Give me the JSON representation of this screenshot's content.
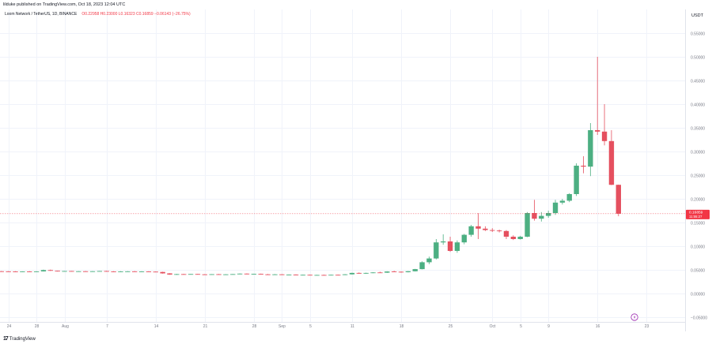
{
  "header": {
    "published": "lilduke published on TradingView.com, Oct 18, 2023 12:04 UTC",
    "symbol": "Loom Network / TetherUS, 1D, BINANCE",
    "ohlc": "O0.22958  H0.23000  L0.16323  C0.16859  −0.06143 (−26.75%)"
  },
  "footer": {
    "brand": "TradingView"
  },
  "colors": {
    "up": "#4caf82",
    "down": "#e5505f",
    "grid": "#f0f3fa",
    "axis": "#787b86",
    "price_label": "#f23645"
  },
  "chart_data": {
    "type": "candlestick",
    "title": "",
    "y_unit": "USDT",
    "ylim": [
      -0.06,
      0.6
    ],
    "y_ticks": [
      -0.05,
      0,
      0.05,
      0.1,
      0.15,
      0.2,
      0.25,
      0.3,
      0.35,
      0.4,
      0.45,
      0.5,
      0.55
    ],
    "y_tick_labels": [
      "−0.05000",
      "0.00000",
      "0.05000",
      "0.10000",
      "0.15000",
      "0.20000",
      "0.25000",
      "0.30000",
      "0.35000",
      "0.40000",
      "0.45000",
      "0.50000",
      "0.55000"
    ],
    "x_tick_labels": [
      {
        "label": "24",
        "day": 0
      },
      {
        "label": "28",
        "day": 4
      },
      {
        "label": "Aug",
        "day": 8
      },
      {
        "label": "7",
        "day": 14
      },
      {
        "label": "14",
        "day": 21
      },
      {
        "label": "21",
        "day": 28
      },
      {
        "label": "28",
        "day": 35
      },
      {
        "label": "Sep",
        "day": 39
      },
      {
        "label": "5",
        "day": 43
      },
      {
        "label": "11",
        "day": 49
      },
      {
        "label": "18",
        "day": 56
      },
      {
        "label": "25",
        "day": 63
      },
      {
        "label": "Oct",
        "day": 69
      },
      {
        "label": "5",
        "day": 73
      },
      {
        "label": "9",
        "day": 77
      },
      {
        "label": "16",
        "day": 84
      },
      {
        "label": "23",
        "day": 91
      }
    ],
    "x_day_range": [
      -1.2,
      96.5
    ],
    "last_price": {
      "value": 0.16859,
      "label": "0.16859",
      "countdown": "11:55:27"
    },
    "candles": [
      [
        -1,
        0.047,
        0.0475,
        0.0465,
        0.0468
      ],
      [
        0,
        0.0468,
        0.0472,
        0.0462,
        0.0465
      ],
      [
        1,
        0.0465,
        0.047,
        0.0458,
        0.046
      ],
      [
        2,
        0.046,
        0.0468,
        0.0455,
        0.0466
      ],
      [
        3,
        0.0466,
        0.0472,
        0.046,
        0.0462
      ],
      [
        4,
        0.0462,
        0.047,
        0.0458,
        0.0467
      ],
      [
        5,
        0.0467,
        0.0505,
        0.0465,
        0.0495
      ],
      [
        6,
        0.0495,
        0.0505,
        0.0478,
        0.048
      ],
      [
        7,
        0.048,
        0.0482,
        0.0465,
        0.047
      ],
      [
        8,
        0.047,
        0.0478,
        0.0465,
        0.0475
      ],
      [
        9,
        0.0475,
        0.0478,
        0.0465,
        0.0468
      ],
      [
        10,
        0.0468,
        0.0472,
        0.046,
        0.047
      ],
      [
        11,
        0.047,
        0.0474,
        0.0462,
        0.0465
      ],
      [
        12,
        0.0465,
        0.0472,
        0.046,
        0.047
      ],
      [
        13,
        0.047,
        0.0478,
        0.0465,
        0.0475
      ],
      [
        14,
        0.0475,
        0.048,
        0.0462,
        0.0465
      ],
      [
        15,
        0.0465,
        0.047,
        0.0455,
        0.046
      ],
      [
        16,
        0.046,
        0.047,
        0.0455,
        0.0465
      ],
      [
        17,
        0.0465,
        0.0472,
        0.046,
        0.0468
      ],
      [
        18,
        0.0468,
        0.0474,
        0.0462,
        0.0464
      ],
      [
        19,
        0.0464,
        0.047,
        0.0458,
        0.0466
      ],
      [
        20,
        0.0466,
        0.047,
        0.0458,
        0.0462
      ],
      [
        21,
        0.0462,
        0.0466,
        0.0452,
        0.0455
      ],
      [
        22,
        0.0455,
        0.046,
        0.042,
        0.0425
      ],
      [
        23,
        0.0425,
        0.043,
        0.0395,
        0.04
      ],
      [
        24,
        0.04,
        0.0415,
        0.0395,
        0.041
      ],
      [
        25,
        0.041,
        0.0415,
        0.04,
        0.0405
      ],
      [
        26,
        0.0405,
        0.0415,
        0.04,
        0.0412
      ],
      [
        27,
        0.0412,
        0.0416,
        0.04,
        0.0405
      ],
      [
        28,
        0.0405,
        0.041,
        0.0398,
        0.0402
      ],
      [
        29,
        0.0402,
        0.041,
        0.0398,
        0.0408
      ],
      [
        30,
        0.0408,
        0.0412,
        0.0398,
        0.04
      ],
      [
        31,
        0.04,
        0.0408,
        0.0395,
        0.0405
      ],
      [
        32,
        0.0405,
        0.0412,
        0.04,
        0.041
      ],
      [
        33,
        0.041,
        0.0425,
        0.0405,
        0.042
      ],
      [
        34,
        0.042,
        0.0425,
        0.0405,
        0.041
      ],
      [
        35,
        0.041,
        0.0418,
        0.0405,
        0.0415
      ],
      [
        36,
        0.0415,
        0.042,
        0.0402,
        0.0405
      ],
      [
        37,
        0.0405,
        0.0412,
        0.0398,
        0.04
      ],
      [
        38,
        0.04,
        0.041,
        0.0395,
        0.0405
      ],
      [
        39,
        0.0405,
        0.041,
        0.0392,
        0.0395
      ],
      [
        40,
        0.0395,
        0.0402,
        0.039,
        0.0398
      ],
      [
        41,
        0.0398,
        0.0405,
        0.039,
        0.0393
      ],
      [
        42,
        0.0393,
        0.04,
        0.0385,
        0.0395
      ],
      [
        43,
        0.0395,
        0.04,
        0.0385,
        0.0388
      ],
      [
        44,
        0.0388,
        0.0395,
        0.0382,
        0.0392
      ],
      [
        45,
        0.0392,
        0.0398,
        0.0385,
        0.039
      ],
      [
        46,
        0.039,
        0.0398,
        0.0385,
        0.0395
      ],
      [
        47,
        0.0395,
        0.04,
        0.0388,
        0.0392
      ],
      [
        48,
        0.0392,
        0.041,
        0.0388,
        0.0405
      ],
      [
        49,
        0.0405,
        0.044,
        0.04,
        0.0435
      ],
      [
        50,
        0.0435,
        0.0445,
        0.0415,
        0.042
      ],
      [
        51,
        0.042,
        0.044,
        0.0415,
        0.0435
      ],
      [
        52,
        0.0435,
        0.045,
        0.043,
        0.0445
      ],
      [
        53,
        0.0445,
        0.046,
        0.0435,
        0.044
      ],
      [
        54,
        0.044,
        0.047,
        0.0435,
        0.0465
      ],
      [
        55,
        0.0465,
        0.048,
        0.0455,
        0.046
      ],
      [
        56,
        0.046,
        0.0465,
        0.044,
        0.045
      ],
      [
        57,
        0.045,
        0.0475,
        0.0445,
        0.047
      ],
      [
        58,
        0.047,
        0.052,
        0.0465,
        0.0515
      ],
      [
        59,
        0.0515,
        0.068,
        0.051,
        0.066
      ],
      [
        60,
        0.066,
        0.078,
        0.062,
        0.074
      ],
      [
        61,
        0.074,
        0.115,
        0.072,
        0.108
      ],
      [
        62,
        0.108,
        0.125,
        0.103,
        0.11
      ],
      [
        63,
        0.11,
        0.12,
        0.088,
        0.09
      ],
      [
        64,
        0.09,
        0.112,
        0.086,
        0.108
      ],
      [
        65,
        0.108,
        0.126,
        0.104,
        0.124
      ],
      [
        66,
        0.124,
        0.145,
        0.12,
        0.142
      ],
      [
        67,
        0.142,
        0.17,
        0.115,
        0.137
      ],
      [
        68,
        0.137,
        0.142,
        0.132,
        0.134
      ],
      [
        69,
        0.134,
        0.138,
        0.13,
        0.133
      ],
      [
        70,
        0.133,
        0.135,
        0.129,
        0.132
      ],
      [
        71,
        0.132,
        0.134,
        0.115,
        0.12
      ],
      [
        72,
        0.12,
        0.123,
        0.113,
        0.115
      ],
      [
        73,
        0.115,
        0.122,
        0.114,
        0.12
      ],
      [
        74,
        0.12,
        0.172,
        0.119,
        0.17
      ],
      [
        75,
        0.17,
        0.198,
        0.154,
        0.158
      ],
      [
        76,
        0.158,
        0.172,
        0.152,
        0.164
      ],
      [
        77,
        0.164,
        0.175,
        0.16,
        0.17
      ],
      [
        78,
        0.17,
        0.198,
        0.166,
        0.192
      ],
      [
        79,
        0.192,
        0.2,
        0.188,
        0.196
      ],
      [
        80,
        0.196,
        0.212,
        0.193,
        0.21
      ],
      [
        81,
        0.21,
        0.275,
        0.206,
        0.27
      ],
      [
        82,
        0.27,
        0.29,
        0.254,
        0.268
      ],
      [
        83,
        0.268,
        0.36,
        0.248,
        0.345
      ],
      [
        84,
        0.345,
        0.5,
        0.335,
        0.342
      ],
      [
        85,
        0.342,
        0.4,
        0.313,
        0.322
      ],
      [
        86,
        0.322,
        0.345,
        0.229,
        0.2296
      ],
      [
        87,
        0.2296,
        0.23,
        0.1632,
        0.1686
      ]
    ]
  }
}
